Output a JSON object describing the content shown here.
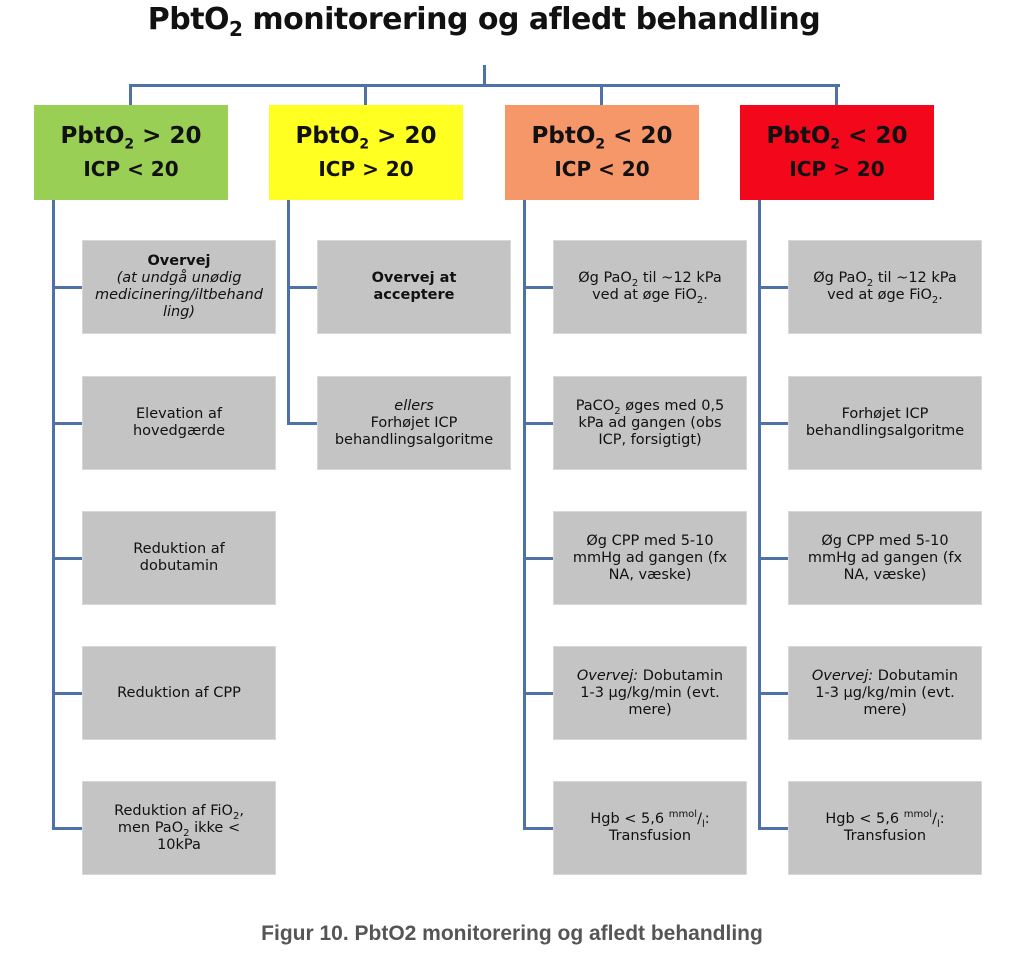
{
  "title": {
    "pre": "PbtO",
    "sub": "2",
    "post": " monitorering og afledt behandling"
  },
  "caption": "Figur 10. PbtO2 monitorering og afledt behandling",
  "colors": {
    "connector": "#4e71a6",
    "action_box": "#c4c4c4"
  },
  "columns": [
    {
      "color": "#99cf55",
      "header": [
        [
          {
            "t": "PbtO"
          },
          {
            "t": "2",
            "sub": true
          },
          {
            "t": " > 20"
          }
        ],
        [
          {
            "t": "ICP < 20"
          }
        ]
      ],
      "items": [
        {
          "lines": [
            [
              {
                "t": "Overvej",
                "b": true
              }
            ],
            [
              {
                "t": "(at undgå unødig",
                "i": true
              }
            ],
            [
              {
                "t": "medicinering/iltbehand",
                "i": true
              }
            ],
            [
              {
                "t": "ling)",
                "i": true
              }
            ]
          ]
        },
        {
          "lines": [
            [
              {
                "t": "Elevation af"
              }
            ],
            [
              {
                "t": "hovedgærde"
              }
            ]
          ]
        },
        {
          "lines": [
            [
              {
                "t": "Reduktion af"
              }
            ],
            [
              {
                "t": "dobutamin"
              }
            ]
          ]
        },
        {
          "lines": [
            [
              {
                "t": "Reduktion af CPP"
              }
            ]
          ]
        },
        {
          "lines": [
            [
              {
                "t": "Reduktion af FiO"
              },
              {
                "t": "2",
                "sub": true
              },
              {
                "t": ","
              }
            ],
            [
              {
                "t": "men PaO"
              },
              {
                "t": "2",
                "sub": true
              },
              {
                "t": " ikke <"
              }
            ],
            [
              {
                "t": "10kPa"
              }
            ]
          ]
        }
      ]
    },
    {
      "color": "#ffff22",
      "header": [
        [
          {
            "t": "PbtO"
          },
          {
            "t": "2",
            "sub": true
          },
          {
            "t": " > 20"
          }
        ],
        [
          {
            "t": "ICP > 20"
          }
        ]
      ],
      "items": [
        {
          "lines": [
            [
              {
                "t": "Overvej at",
                "b": true
              }
            ],
            [
              {
                "t": "acceptere",
                "b": true
              }
            ]
          ]
        },
        {
          "lines": [
            [
              {
                "t": "ellers",
                "i": true
              }
            ],
            [
              {
                "t": "Forhøjet ICP"
              }
            ],
            [
              {
                "t": "behandlingsalgoritme"
              }
            ]
          ]
        }
      ]
    },
    {
      "color": "#f6976a",
      "header": [
        [
          {
            "t": "PbtO"
          },
          {
            "t": "2",
            "sub": true
          },
          {
            "t": " < 20"
          }
        ],
        [
          {
            "t": "ICP < 20"
          }
        ]
      ],
      "items": [
        {
          "lines": [
            [
              {
                "t": "Øg PaO"
              },
              {
                "t": "2",
                "sub": true
              },
              {
                "t": " til ~12 kPa"
              }
            ],
            [
              {
                "t": "ved at øge FiO"
              },
              {
                "t": "2",
                "sub": true
              },
              {
                "t": "."
              }
            ]
          ]
        },
        {
          "lines": [
            [
              {
                "t": "PaCO"
              },
              {
                "t": "2",
                "sub": true
              },
              {
                "t": " øges med 0,5"
              }
            ],
            [
              {
                "t": "kPa ad gangen (obs"
              }
            ],
            [
              {
                "t": "ICP, forsigtigt)"
              }
            ]
          ]
        },
        {
          "lines": [
            [
              {
                "t": "Øg CPP med 5-10"
              }
            ],
            [
              {
                "t": "mmHg ad gangen (fx"
              }
            ],
            [
              {
                "t": "NA, væske)"
              }
            ]
          ]
        },
        {
          "lines": [
            [
              {
                "t": "Overvej:",
                "i": true
              },
              {
                "t": " Dobutamin"
              }
            ],
            [
              {
                "t": "1-3 µg/kg/min (evt."
              }
            ],
            [
              {
                "t": "mere)"
              }
            ]
          ]
        },
        {
          "lines": [
            [
              {
                "t": "Hgb < 5,6 "
              },
              {
                "t": "mmol",
                "sup": true
              },
              {
                "t": "/"
              },
              {
                "t": "l",
                "sub": true
              },
              {
                "t": ":"
              }
            ],
            [
              {
                "t": "Transfusion"
              }
            ]
          ]
        }
      ]
    },
    {
      "color": "#f2071b",
      "header": [
        [
          {
            "t": "PbtO"
          },
          {
            "t": "2",
            "sub": true
          },
          {
            "t": " < 20"
          }
        ],
        [
          {
            "t": "ICP > 20"
          }
        ]
      ],
      "items": [
        {
          "lines": [
            [
              {
                "t": "Øg PaO"
              },
              {
                "t": "2",
                "sub": true
              },
              {
                "t": " til ~12 kPa"
              }
            ],
            [
              {
                "t": "ved at øge FiO"
              },
              {
                "t": "2",
                "sub": true
              },
              {
                "t": "."
              }
            ]
          ]
        },
        {
          "lines": [
            [
              {
                "t": "Forhøjet ICP"
              }
            ],
            [
              {
                "t": "behandlingsalgoritme"
              }
            ]
          ]
        },
        {
          "lines": [
            [
              {
                "t": "Øg CPP med 5-10"
              }
            ],
            [
              {
                "t": "mmHg ad gangen (fx"
              }
            ],
            [
              {
                "t": "NA, væske)"
              }
            ]
          ]
        },
        {
          "lines": [
            [
              {
                "t": "Overvej:",
                "i": true
              },
              {
                "t": " Dobutamin"
              }
            ],
            [
              {
                "t": "1-3 µg/kg/min (evt."
              }
            ],
            [
              {
                "t": "mere)"
              }
            ]
          ]
        },
        {
          "lines": [
            [
              {
                "t": "Hgb < 5,6 "
              },
              {
                "t": "mmol",
                "sup": true
              },
              {
                "t": "/"
              },
              {
                "t": "l",
                "sub": true
              },
              {
                "t": ":"
              }
            ],
            [
              {
                "t": "Transfusion"
              }
            ]
          ]
        }
      ]
    }
  ]
}
